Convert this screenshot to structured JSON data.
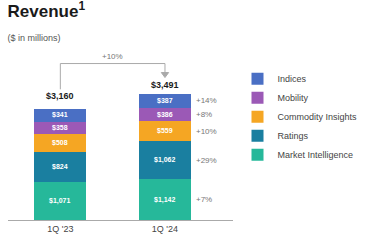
{
  "chart_data": {
    "type": "bar",
    "stacked": true,
    "title": "Revenue",
    "title_superscript": "1",
    "subtitle": "($ in millions)",
    "categories": [
      "1Q '23",
      "1Q '24"
    ],
    "series": [
      {
        "name": "Market Intelligence",
        "color": "#26b89a",
        "values": [
          1071,
          1142
        ],
        "value_labels": [
          "$1,071",
          "$1,142"
        ],
        "change_label": "+7%"
      },
      {
        "name": "Ratings",
        "color": "#1a7fa0",
        "values": [
          824,
          1062
        ],
        "value_labels": [
          "$824",
          "$1,062"
        ],
        "change_label": "+29%"
      },
      {
        "name": "Commodity Insights",
        "color": "#f5a623",
        "values": [
          508,
          559
        ],
        "value_labels": [
          "$508",
          "$559"
        ],
        "change_label": "+10%"
      },
      {
        "name": "Mobility",
        "color": "#9b59b6",
        "values": [
          358,
          386
        ],
        "value_labels": [
          "$358",
          "$386"
        ],
        "change_label": "+8%"
      },
      {
        "name": "Indices",
        "color": "#4a6fc4",
        "values": [
          341,
          387
        ],
        "value_labels": [
          "$341",
          "$387"
        ],
        "change_label": "+14%"
      }
    ],
    "totals": [
      3160,
      3491
    ],
    "total_labels": [
      "$3,160",
      "$3,491"
    ],
    "total_change_label": "+10%",
    "ylim": [
      0,
      4600
    ],
    "tick_labels": "x",
    "grid": false,
    "legend": "right",
    "data_labels": true
  }
}
